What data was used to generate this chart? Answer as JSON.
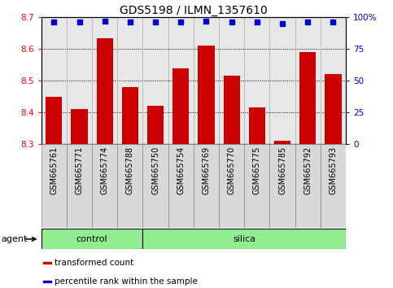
{
  "title": "GDS5198 / ILMN_1357610",
  "samples": [
    "GSM665761",
    "GSM665771",
    "GSM665774",
    "GSM665788",
    "GSM665750",
    "GSM665754",
    "GSM665769",
    "GSM665770",
    "GSM665775",
    "GSM665785",
    "GSM665792",
    "GSM665793"
  ],
  "transformed_count": [
    8.45,
    8.41,
    8.635,
    8.48,
    8.42,
    8.54,
    8.61,
    8.515,
    8.415,
    8.31,
    8.59,
    8.52
  ],
  "percentile_rank": [
    96,
    96,
    97,
    96,
    96,
    96,
    97,
    96,
    96,
    95,
    96,
    96
  ],
  "ylim_left": [
    8.3,
    8.7
  ],
  "ylim_right": [
    0,
    100
  ],
  "yticks_left": [
    8.3,
    8.4,
    8.5,
    8.6,
    8.7
  ],
  "yticks_right": [
    0,
    25,
    50,
    75,
    100
  ],
  "ytick_labels_right": [
    "0",
    "25",
    "50",
    "75",
    "100%"
  ],
  "bar_color": "#cc0000",
  "dot_color": "#0000cc",
  "bar_bottom": 8.3,
  "control_count": 4,
  "silica_count": 8,
  "green": "#90ee90",
  "legend_items": [
    {
      "color": "#cc0000",
      "label": "transformed count"
    },
    {
      "color": "#0000cc",
      "label": "percentile rank within the sample"
    }
  ],
  "title_fontsize": 10,
  "tick_fontsize": 7.5,
  "label_fontsize": 8,
  "col_bg": "#d8d8d8"
}
